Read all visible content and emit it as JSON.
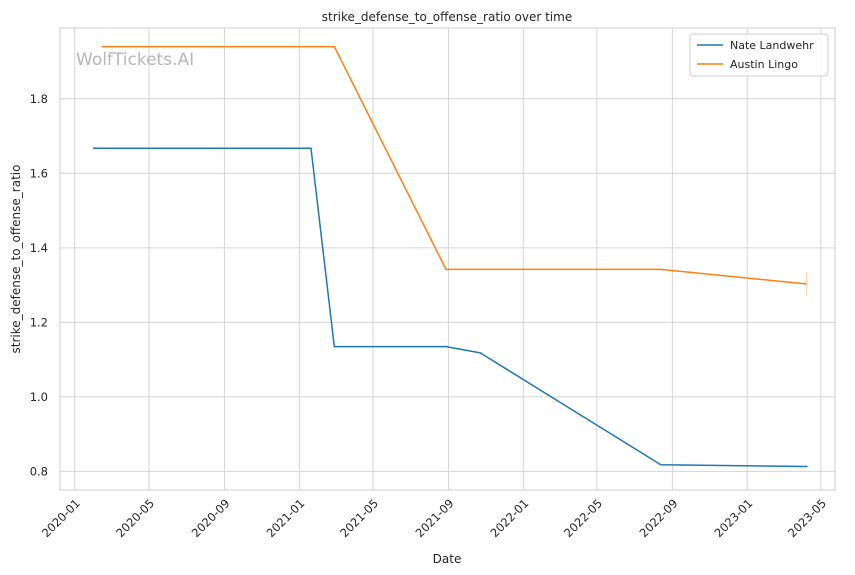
{
  "watermark": "WolfTickets.AI",
  "chart_data": {
    "type": "line",
    "title": "strike_defense_to_offense_ratio over time",
    "xlabel": "Date",
    "ylabel": "strike_defense_to_offense_ratio",
    "x_ticks": [
      "2020-01",
      "2020-05",
      "2020-09",
      "2021-01",
      "2021-05",
      "2021-09",
      "2022-01",
      "2022-05",
      "2022-09",
      "2023-01",
      "2023-05"
    ],
    "y_ticks": [
      "0.8",
      "1.0",
      "1.2",
      "1.4",
      "1.6",
      "1.8"
    ],
    "xlim": [
      "2019-12-08",
      "2023-05-24"
    ],
    "ylim": [
      0.75,
      1.99
    ],
    "grid": true,
    "legend_position": "top-right",
    "series": [
      {
        "name": "Nate Landwehr",
        "color": "#1f77b4",
        "points": [
          {
            "x": "2020-02-01",
            "y": 1.667
          },
          {
            "x": "2021-01-20",
            "y": 1.667
          },
          {
            "x": "2021-02-27",
            "y": 1.135
          },
          {
            "x": "2021-08-28",
            "y": 1.135
          },
          {
            "x": "2021-10-23",
            "y": 1.118
          },
          {
            "x": "2022-08-13",
            "y": 0.818
          },
          {
            "x": "2023-04-08",
            "y": 0.813
          }
        ]
      },
      {
        "name": "Austin Lingo",
        "color": "#ff7f0e",
        "points": [
          {
            "x": "2020-02-15",
            "y": 1.94
          },
          {
            "x": "2021-02-27",
            "y": 1.94
          },
          {
            "x": "2021-08-28",
            "y": 1.342
          },
          {
            "x": "2022-08-13",
            "y": 1.342
          },
          {
            "x": "2023-04-08",
            "y": 1.303
          }
        ]
      }
    ]
  }
}
